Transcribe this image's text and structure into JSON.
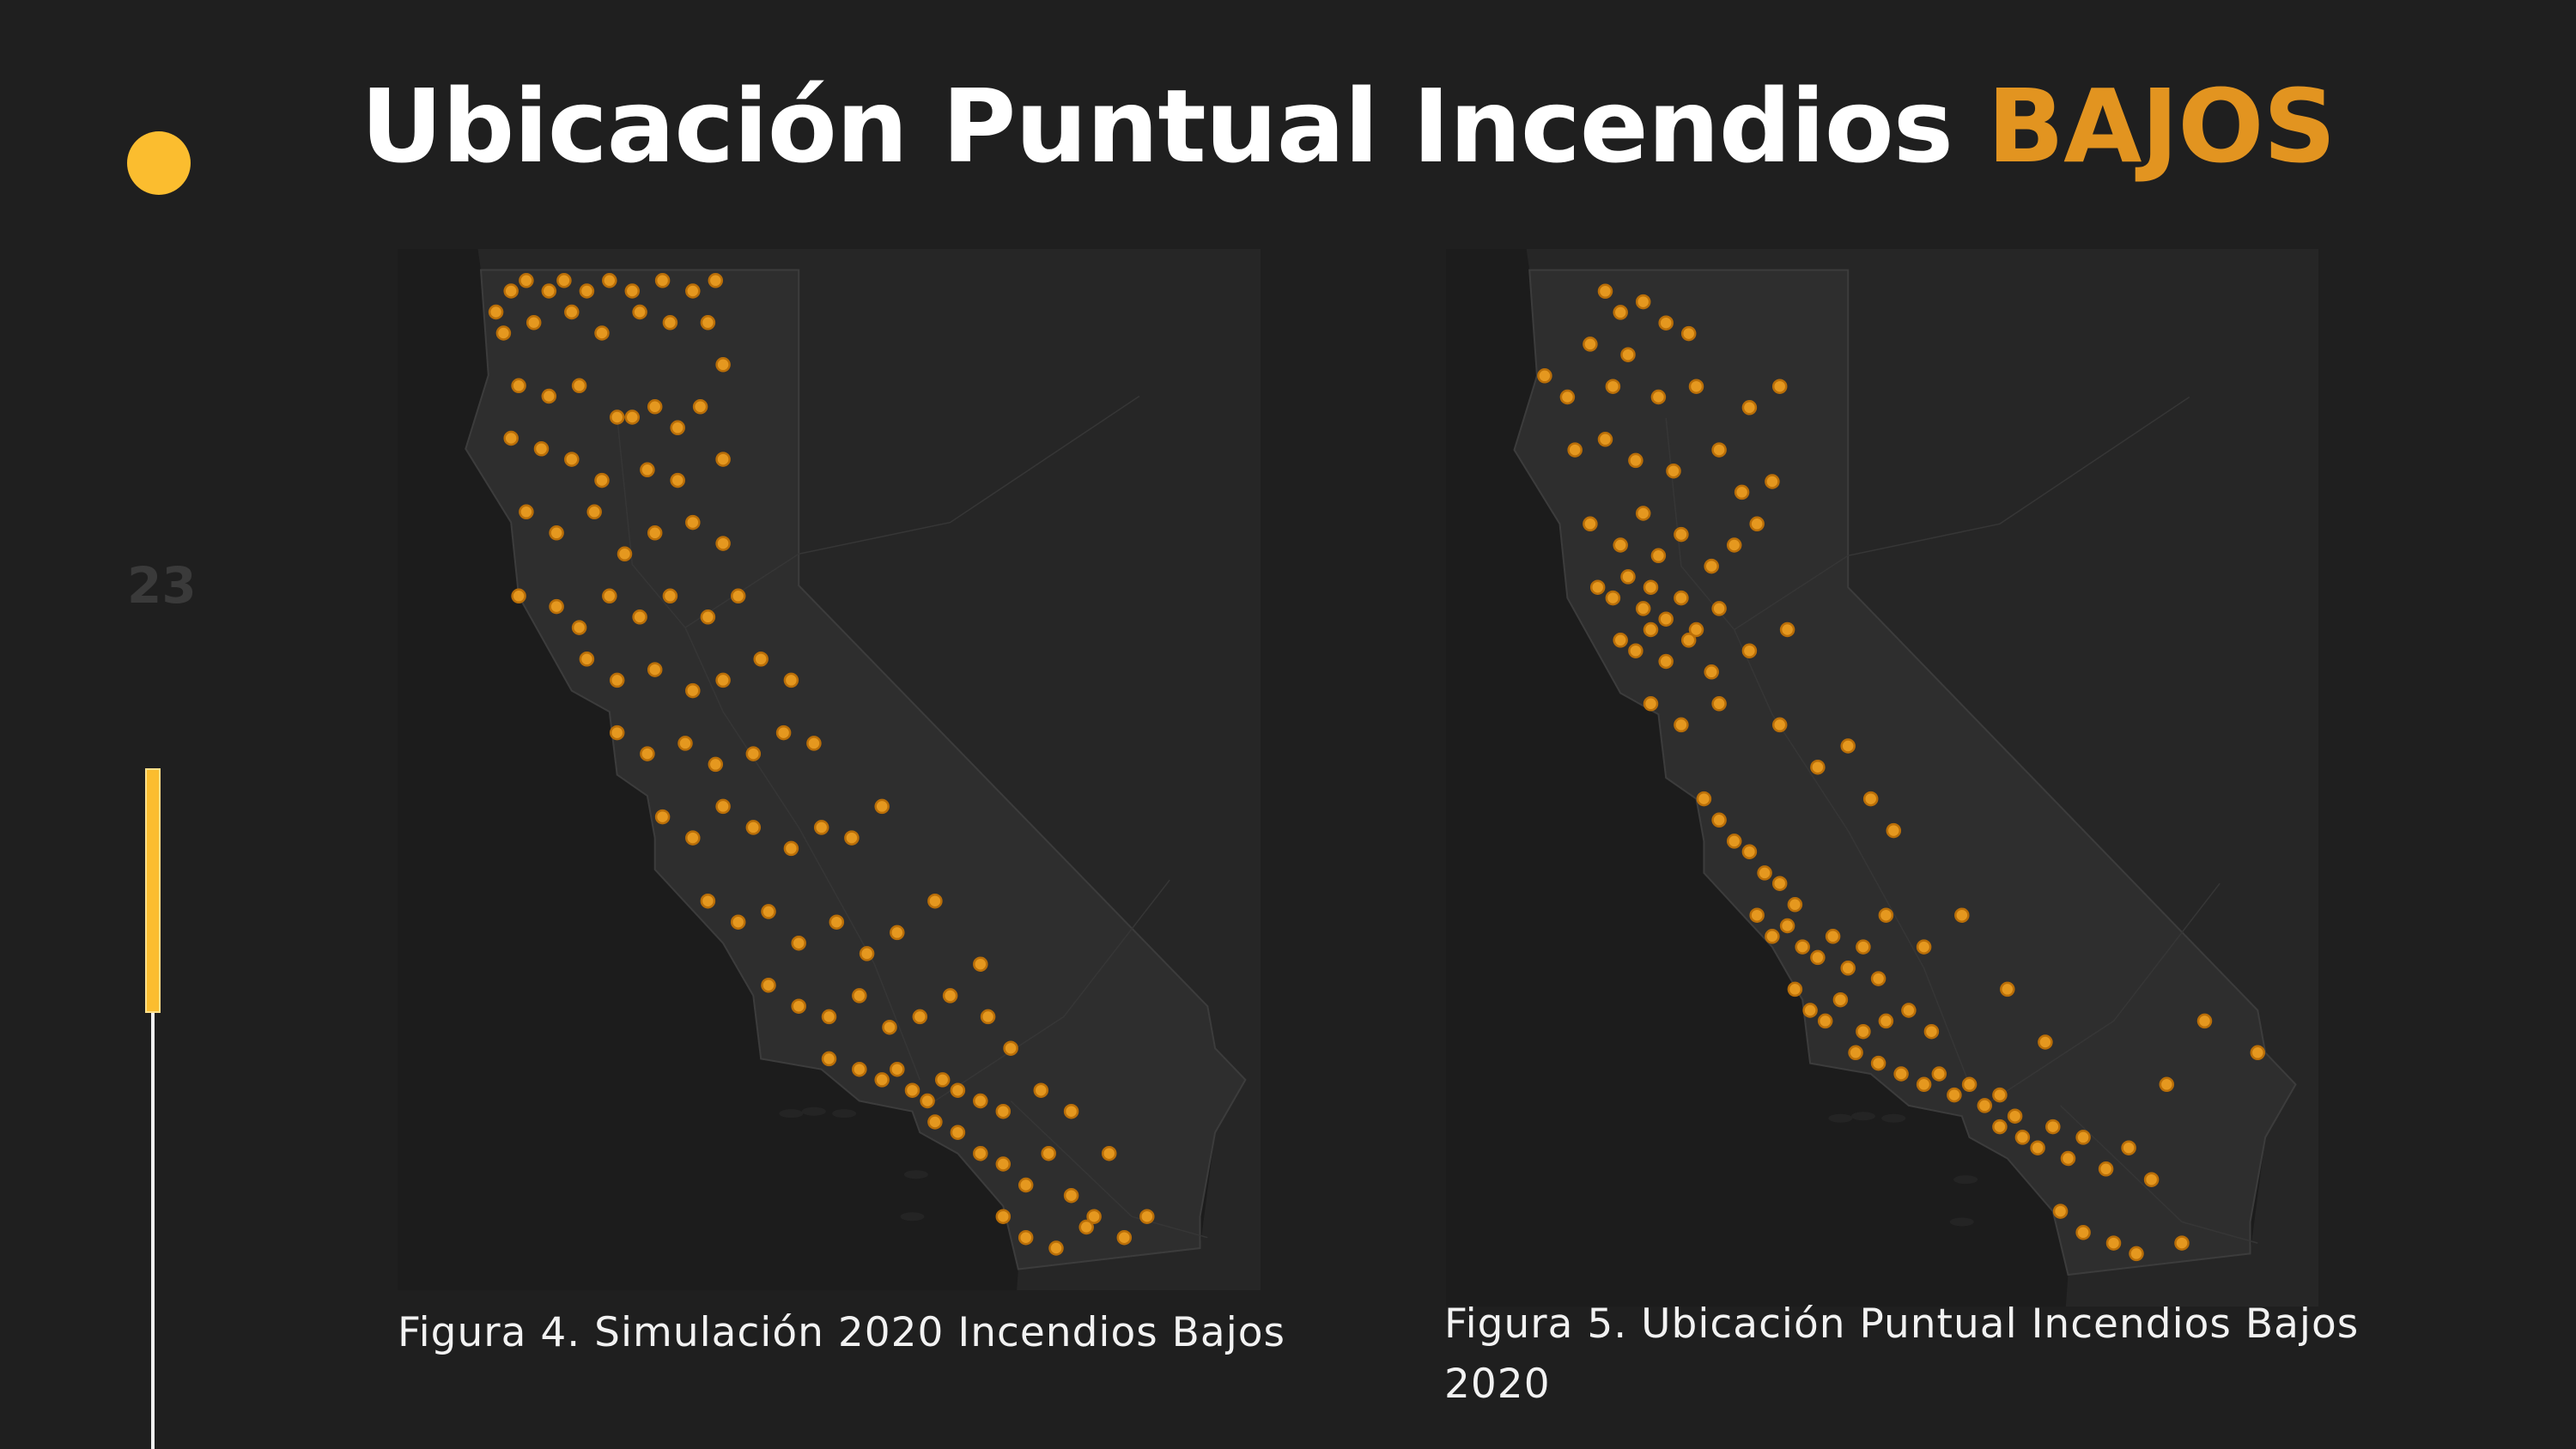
{
  "slide": {
    "title_main": "Ubicación Puntual Incendios",
    "title_accent": "BAJOS",
    "page_number": "23",
    "progress_fraction": 0.36
  },
  "colors": {
    "background": "#1f1f1f",
    "accent_yellow": "#fbbd2f",
    "accent_orange": "#e29420",
    "fire_point": "#f5a21e",
    "land": "#2e2e2e",
    "water": "#1c1c1c",
    "state_line": "#3c3c3c"
  },
  "figures": [
    {
      "caption": "Figura 4. Simulación 2020 Incendios Bajos",
      "point_style": "fire-point-marker",
      "bounds": [
        [
          -125.3,
          32.3
        ],
        [
          -113.9,
          42.2
        ]
      ],
      "points": [
        [
          -124.0,
          41.6
        ],
        [
          -123.8,
          41.8
        ],
        [
          -123.6,
          41.9
        ],
        [
          -123.3,
          41.8
        ],
        [
          -123.1,
          41.9
        ],
        [
          -122.8,
          41.8
        ],
        [
          -122.5,
          41.9
        ],
        [
          -122.2,
          41.8
        ],
        [
          -121.8,
          41.9
        ],
        [
          -121.4,
          41.8
        ],
        [
          -121.1,
          41.9
        ],
        [
          -123.9,
          41.4
        ],
        [
          -123.5,
          41.5
        ],
        [
          -123.0,
          41.6
        ],
        [
          -122.6,
          41.4
        ],
        [
          -122.1,
          41.6
        ],
        [
          -121.7,
          41.5
        ],
        [
          -121.2,
          41.5
        ],
        [
          -121.0,
          41.1
        ],
        [
          -123.7,
          40.9
        ],
        [
          -123.3,
          40.8
        ],
        [
          -122.9,
          40.9
        ],
        [
          -122.4,
          40.6
        ],
        [
          -122.2,
          40.6
        ],
        [
          -121.9,
          40.7
        ],
        [
          -121.6,
          40.5
        ],
        [
          -121.3,
          40.7
        ],
        [
          -123.8,
          40.4
        ],
        [
          -123.4,
          40.3
        ],
        [
          -123.0,
          40.2
        ],
        [
          -122.6,
          40.0
        ],
        [
          -122.0,
          40.1
        ],
        [
          -121.6,
          40.0
        ],
        [
          -121.0,
          40.2
        ],
        [
          -123.6,
          39.7
        ],
        [
          -123.2,
          39.5
        ],
        [
          -122.7,
          39.7
        ],
        [
          -122.3,
          39.3
        ],
        [
          -121.9,
          39.5
        ],
        [
          -121.4,
          39.6
        ],
        [
          -121.0,
          39.4
        ],
        [
          -123.7,
          38.9
        ],
        [
          -123.2,
          38.8
        ],
        [
          -122.9,
          38.6
        ],
        [
          -122.5,
          38.9
        ],
        [
          -122.1,
          38.7
        ],
        [
          -121.7,
          38.9
        ],
        [
          -121.2,
          38.7
        ],
        [
          -120.8,
          38.9
        ],
        [
          -122.8,
          38.3
        ],
        [
          -122.4,
          38.1
        ],
        [
          -121.9,
          38.2
        ],
        [
          -121.4,
          38.0
        ],
        [
          -121.0,
          38.1
        ],
        [
          -120.5,
          38.3
        ],
        [
          -120.1,
          38.1
        ],
        [
          -122.4,
          37.6
        ],
        [
          -122.0,
          37.4
        ],
        [
          -121.5,
          37.5
        ],
        [
          -121.1,
          37.3
        ],
        [
          -120.6,
          37.4
        ],
        [
          -120.2,
          37.6
        ],
        [
          -119.8,
          37.5
        ],
        [
          -121.8,
          36.8
        ],
        [
          -121.4,
          36.6
        ],
        [
          -121.0,
          36.9
        ],
        [
          -120.6,
          36.7
        ],
        [
          -120.1,
          36.5
        ],
        [
          -119.7,
          36.7
        ],
        [
          -119.3,
          36.6
        ],
        [
          -118.9,
          36.9
        ],
        [
          -121.2,
          36.0
        ],
        [
          -120.8,
          35.8
        ],
        [
          -120.4,
          35.9
        ],
        [
          -120.0,
          35.6
        ],
        [
          -119.5,
          35.8
        ],
        [
          -119.1,
          35.5
        ],
        [
          -118.7,
          35.7
        ],
        [
          -118.2,
          36.0
        ],
        [
          -120.4,
          35.2
        ],
        [
          -120.0,
          35.0
        ],
        [
          -119.6,
          34.9
        ],
        [
          -119.2,
          35.1
        ],
        [
          -118.8,
          34.8
        ],
        [
          -118.4,
          34.9
        ],
        [
          -118.0,
          35.1
        ],
        [
          -117.5,
          34.9
        ],
        [
          -119.6,
          34.5
        ],
        [
          -119.2,
          34.4
        ],
        [
          -118.9,
          34.3
        ],
        [
          -118.7,
          34.4
        ],
        [
          -118.5,
          34.2
        ],
        [
          -118.3,
          34.1
        ],
        [
          -118.1,
          34.3
        ],
        [
          -117.9,
          34.2
        ],
        [
          -117.6,
          34.1
        ],
        [
          -117.3,
          34.0
        ],
        [
          -118.2,
          33.9
        ],
        [
          -117.9,
          33.8
        ],
        [
          -117.6,
          33.6
        ],
        [
          -117.3,
          33.5
        ],
        [
          -117.0,
          33.3
        ],
        [
          -116.7,
          33.6
        ],
        [
          -116.4,
          33.2
        ],
        [
          -116.1,
          33.0
        ],
        [
          -117.3,
          33.0
        ],
        [
          -117.0,
          32.8
        ],
        [
          -116.6,
          32.7
        ],
        [
          -116.2,
          32.9
        ],
        [
          -115.7,
          32.8
        ],
        [
          -115.4,
          33.0
        ],
        [
          -117.6,
          35.4
        ],
        [
          -117.2,
          34.6
        ],
        [
          -116.8,
          34.2
        ],
        [
          -116.4,
          34.0
        ],
        [
          -115.9,
          33.6
        ]
      ]
    },
    {
      "caption": "Figura 5. Ubicación Puntual Incendios Bajos 2020",
      "point_style": "fire-point-marker",
      "bounds": [
        [
          -125.3,
          32.2
        ],
        [
          -113.8,
          42.2
        ]
      ],
      "points": [
        [
          -123.2,
          41.8
        ],
        [
          -123.0,
          41.6
        ],
        [
          -122.7,
          41.7
        ],
        [
          -122.4,
          41.5
        ],
        [
          -123.4,
          41.3
        ],
        [
          -122.9,
          41.2
        ],
        [
          -122.1,
          41.4
        ],
        [
          -124.0,
          41.0
        ],
        [
          -123.7,
          40.8
        ],
        [
          -123.1,
          40.9
        ],
        [
          -122.5,
          40.8
        ],
        [
          -122.0,
          40.9
        ],
        [
          -121.3,
          40.7
        ],
        [
          -120.9,
          40.9
        ],
        [
          -123.6,
          40.3
        ],
        [
          -123.2,
          40.4
        ],
        [
          -122.8,
          40.2
        ],
        [
          -122.3,
          40.1
        ],
        [
          -121.7,
          40.3
        ],
        [
          -121.4,
          39.9
        ],
        [
          -121.0,
          40.0
        ],
        [
          -123.4,
          39.6
        ],
        [
          -123.0,
          39.4
        ],
        [
          -122.7,
          39.7
        ],
        [
          -122.5,
          39.3
        ],
        [
          -122.2,
          39.5
        ],
        [
          -121.8,
          39.2
        ],
        [
          -121.5,
          39.4
        ],
        [
          -121.2,
          39.6
        ],
        [
          -123.3,
          39.0
        ],
        [
          -123.1,
          38.9
        ],
        [
          -122.9,
          39.1
        ],
        [
          -122.7,
          38.8
        ],
        [
          -122.6,
          39.0
        ],
        [
          -122.4,
          38.7
        ],
        [
          -122.2,
          38.9
        ],
        [
          -122.0,
          38.6
        ],
        [
          -121.7,
          38.8
        ],
        [
          -123.0,
          38.5
        ],
        [
          -122.8,
          38.4
        ],
        [
          -122.6,
          38.6
        ],
        [
          -122.4,
          38.3
        ],
        [
          -122.1,
          38.5
        ],
        [
          -121.8,
          38.2
        ],
        [
          -121.3,
          38.4
        ],
        [
          -120.8,
          38.6
        ],
        [
          -122.6,
          37.9
        ],
        [
          -122.2,
          37.7
        ],
        [
          -121.7,
          37.9
        ],
        [
          -120.9,
          37.7
        ],
        [
          -120.4,
          37.3
        ],
        [
          -120.0,
          37.5
        ],
        [
          -119.7,
          37.0
        ],
        [
          -119.4,
          36.7
        ],
        [
          -121.9,
          37.0
        ],
        [
          -121.7,
          36.8
        ],
        [
          -121.5,
          36.6
        ],
        [
          -121.3,
          36.5
        ],
        [
          -121.1,
          36.3
        ],
        [
          -120.9,
          36.2
        ],
        [
          -120.7,
          36.0
        ],
        [
          -121.2,
          35.9
        ],
        [
          -121.0,
          35.7
        ],
        [
          -120.8,
          35.8
        ],
        [
          -120.6,
          35.6
        ],
        [
          -120.4,
          35.5
        ],
        [
          -120.2,
          35.7
        ],
        [
          -120.0,
          35.4
        ],
        [
          -119.8,
          35.6
        ],
        [
          -119.6,
          35.3
        ],
        [
          -120.7,
          35.2
        ],
        [
          -120.5,
          35.0
        ],
        [
          -120.3,
          34.9
        ],
        [
          -120.1,
          35.1
        ],
        [
          -119.8,
          34.8
        ],
        [
          -119.5,
          34.9
        ],
        [
          -119.2,
          35.0
        ],
        [
          -118.9,
          34.8
        ],
        [
          -119.9,
          34.6
        ],
        [
          -119.6,
          34.5
        ],
        [
          -119.3,
          34.4
        ],
        [
          -119.0,
          34.3
        ],
        [
          -118.8,
          34.4
        ],
        [
          -118.6,
          34.2
        ],
        [
          -118.4,
          34.3
        ],
        [
          -118.2,
          34.1
        ],
        [
          -118.0,
          34.2
        ],
        [
          -117.8,
          34.0
        ],
        [
          -118.0,
          33.9
        ],
        [
          -117.7,
          33.8
        ],
        [
          -117.5,
          33.7
        ],
        [
          -117.3,
          33.9
        ],
        [
          -117.1,
          33.6
        ],
        [
          -116.9,
          33.8
        ],
        [
          -116.6,
          33.5
        ],
        [
          -116.3,
          33.7
        ],
        [
          -116.0,
          33.4
        ],
        [
          -117.2,
          33.1
        ],
        [
          -116.9,
          32.9
        ],
        [
          -116.5,
          32.8
        ],
        [
          -116.2,
          32.7
        ],
        [
          -115.6,
          32.8
        ],
        [
          -119.5,
          35.9
        ],
        [
          -119.0,
          35.6
        ],
        [
          -118.5,
          35.9
        ],
        [
          -117.9,
          35.2
        ],
        [
          -117.4,
          34.7
        ],
        [
          -115.8,
          34.3
        ],
        [
          -115.3,
          34.9
        ],
        [
          -114.6,
          34.6
        ]
      ]
    }
  ]
}
